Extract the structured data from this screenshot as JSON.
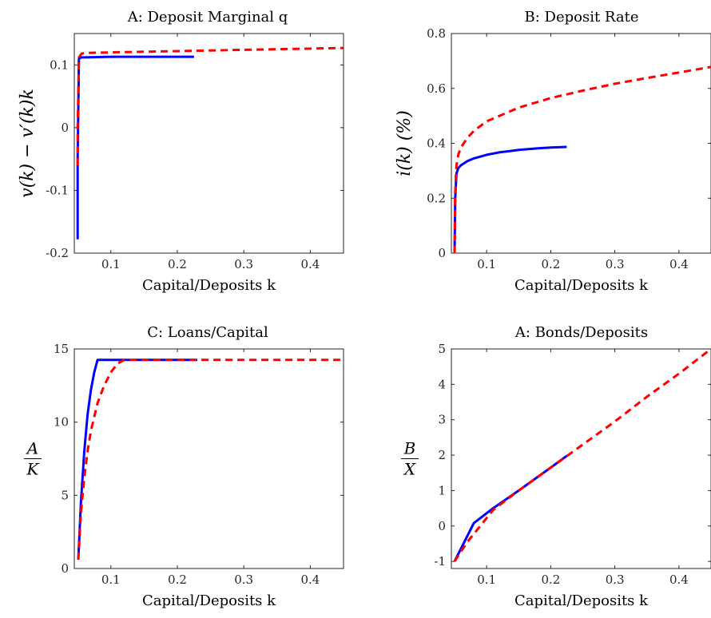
{
  "chart_data": [
    {
      "type": "line",
      "title": "A: Deposit Marginal q",
      "xlabel": "Capital/Deposits k",
      "ylabel": "v(k) − v′(k)k",
      "xlim": [
        0.045,
        0.45
      ],
      "ylim": [
        -0.2,
        0.15
      ],
      "xticks": [
        0.1,
        0.2,
        0.3,
        0.4
      ],
      "xtick_labels": [
        "0.1",
        "0.2",
        "0.3",
        "0.4"
      ],
      "yticks": [
        -0.2,
        -0.1,
        0,
        0.1
      ],
      "ytick_labels": [
        "-0.2",
        "-0.1",
        "0",
        "0.1"
      ],
      "series": [
        {
          "style": "solid",
          "color": "#0000ff",
          "x": [
            0.05,
            0.05,
            0.052,
            0.056,
            0.06,
            0.1,
            0.15,
            0.2,
            0.225
          ],
          "y": [
            -0.178,
            -0.05,
            0.11,
            0.112,
            0.112,
            0.113,
            0.113,
            0.113,
            0.113
          ]
        },
        {
          "style": "dashed",
          "color": "#ff0000",
          "x": [
            0.05,
            0.05,
            0.052,
            0.056,
            0.06,
            0.1,
            0.2,
            0.3,
            0.45
          ],
          "y": [
            -0.06,
            0.0,
            0.112,
            0.118,
            0.119,
            0.12,
            0.122,
            0.124,
            0.127
          ]
        }
      ]
    },
    {
      "type": "line",
      "title": "B: Deposit Rate",
      "xlabel": "Capital/Deposits k",
      "ylabel": "i(k) (%)",
      "xlim": [
        0.045,
        0.45
      ],
      "ylim": [
        0,
        0.8
      ],
      "xticks": [
        0.1,
        0.2,
        0.3,
        0.4
      ],
      "xtick_labels": [
        "0.1",
        "0.2",
        "0.3",
        "0.4"
      ],
      "yticks": [
        0,
        0.2,
        0.4,
        0.6,
        0.8
      ],
      "ytick_labels": [
        "0",
        "0.2",
        "0.4",
        "0.6",
        "0.8"
      ],
      "series": [
        {
          "style": "solid",
          "color": "#0000ff",
          "x": [
            0.05,
            0.051,
            0.053,
            0.056,
            0.06,
            0.07,
            0.08,
            0.1,
            0.12,
            0.15,
            0.18,
            0.2,
            0.225
          ],
          "y": [
            0.0,
            0.2,
            0.29,
            0.31,
            0.32,
            0.335,
            0.345,
            0.358,
            0.367,
            0.376,
            0.382,
            0.385,
            0.387
          ]
        },
        {
          "style": "dashed",
          "color": "#ff0000",
          "x": [
            0.05,
            0.051,
            0.053,
            0.056,
            0.06,
            0.07,
            0.08,
            0.1,
            0.15,
            0.2,
            0.25,
            0.3,
            0.35,
            0.4,
            0.45
          ],
          "y": [
            0.0,
            0.22,
            0.32,
            0.36,
            0.385,
            0.42,
            0.445,
            0.48,
            0.53,
            0.565,
            0.592,
            0.617,
            0.638,
            0.658,
            0.678
          ]
        }
      ]
    },
    {
      "type": "line",
      "title": "C: Loans/Capital",
      "xlabel": "Capital/Deposits k",
      "ylabel_num": "A",
      "ylabel_den": "K",
      "xlim": [
        0.045,
        0.45
      ],
      "ylim": [
        0,
        15
      ],
      "xticks": [
        0.1,
        0.2,
        0.3,
        0.4
      ],
      "xtick_labels": [
        "0.1",
        "0.2",
        "0.3",
        "0.4"
      ],
      "yticks": [
        0,
        5,
        10,
        15
      ],
      "ytick_labels": [
        "0",
        "5",
        "10",
        "15"
      ],
      "series": [
        {
          "style": "solid",
          "color": "#0000ff",
          "x": [
            0.051,
            0.055,
            0.06,
            0.065,
            0.07,
            0.075,
            0.08,
            0.1,
            0.15,
            0.2,
            0.23
          ],
          "y": [
            0.6,
            4.5,
            8.0,
            10.5,
            12.2,
            13.4,
            14.25,
            14.25,
            14.25,
            14.25,
            14.25
          ]
        },
        {
          "style": "dashed",
          "color": "#ff0000",
          "x": [
            0.051,
            0.055,
            0.06,
            0.065,
            0.07,
            0.08,
            0.09,
            0.1,
            0.11,
            0.12,
            0.15,
            0.2,
            0.3,
            0.45
          ],
          "y": [
            0.6,
            3.8,
            6.2,
            8.0,
            9.4,
            11.3,
            12.5,
            13.4,
            14.0,
            14.25,
            14.25,
            14.25,
            14.25,
            14.25
          ]
        }
      ]
    },
    {
      "type": "line",
      "title": "A: Bonds/Deposits",
      "xlabel": "Capital/Deposits k",
      "ylabel_num": "B",
      "ylabel_den": "X",
      "xlim": [
        0.045,
        0.45
      ],
      "ylim": [
        -1.2,
        5
      ],
      "xticks": [
        0.1,
        0.2,
        0.3,
        0.4
      ],
      "xtick_labels": [
        "0.1",
        "0.2",
        "0.3",
        "0.4"
      ],
      "yticks": [
        -1,
        0,
        1,
        2,
        3,
        4,
        5
      ],
      "ytick_labels": [
        "-1",
        "0",
        "1",
        "2",
        "3",
        "4",
        "5"
      ],
      "series": [
        {
          "style": "solid",
          "color": "#0000ff",
          "x": [
            0.05,
            0.08,
            0.11,
            0.15,
            0.2,
            0.225
          ],
          "y": [
            -1.0,
            0.08,
            0.5,
            1.0,
            1.65,
            1.98
          ]
        },
        {
          "style": "dashed",
          "color": "#ff0000",
          "x": [
            0.05,
            0.07,
            0.09,
            0.11,
            0.15,
            0.2,
            0.25,
            0.3,
            0.35,
            0.4,
            0.45
          ],
          "y": [
            -1.0,
            -0.45,
            0.0,
            0.45,
            1.0,
            1.65,
            2.3,
            2.95,
            3.65,
            4.3,
            5.0
          ]
        }
      ]
    }
  ]
}
